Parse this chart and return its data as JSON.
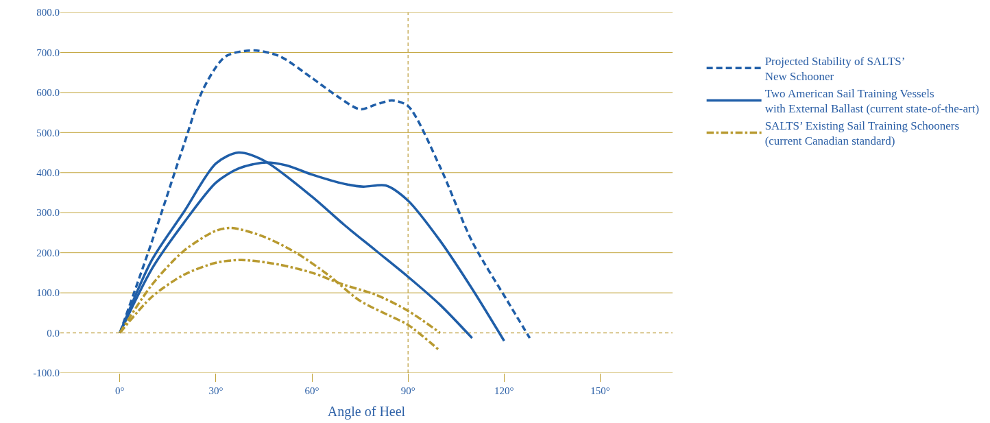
{
  "chart_data": {
    "type": "line",
    "xlabel": "Angle of Heel",
    "xlim": [
      -18.6,
      172.6
    ],
    "ylim": [
      -100,
      800
    ],
    "xticks": [
      {
        "value": 0,
        "label": "0°"
      },
      {
        "value": 30,
        "label": "30°"
      },
      {
        "value": 60,
        "label": "60°"
      },
      {
        "value": 90,
        "label": "90°"
      },
      {
        "value": 120,
        "label": "120°"
      },
      {
        "value": 150,
        "label": "150°"
      }
    ],
    "yticks": [
      {
        "value": -100,
        "label": "-100.0"
      },
      {
        "value": 0,
        "label": "0.0"
      },
      {
        "value": 100,
        "label": "100.0"
      },
      {
        "value": 200,
        "label": "200.0"
      },
      {
        "value": 300,
        "label": "300.0"
      },
      {
        "value": 400,
        "label": "400.0"
      },
      {
        "value": 500,
        "label": "500.0"
      },
      {
        "value": 600,
        "label": "600.0"
      },
      {
        "value": 700,
        "label": "700.0"
      },
      {
        "value": 800,
        "label": "800.0"
      }
    ],
    "grid": "y",
    "legend": "right",
    "marker": "none",
    "series": [
      {
        "name": "Projected Stability of SALTS’\nNew Schooner",
        "color": "#1f5ea8",
        "line_style": "dashed",
        "x": [
          0,
          10,
          20,
          26,
          33,
          42,
          50,
          60,
          68,
          75,
          80,
          85,
          90,
          100,
          110,
          121,
          128
        ],
        "values": [
          0,
          228,
          470,
          608,
          690,
          705,
          690,
          636,
          590,
          558,
          570,
          580,
          566,
          414,
          228,
          80,
          -13
        ]
      },
      {
        "name": "Two American Sail Training Vessels\nwith External Ballast (current state-of-the-art)",
        "color": "#1f5ea8",
        "line_style": "solid",
        "x": [
          0,
          10,
          20,
          30,
          37,
          45,
          52,
          60,
          70,
          76,
          83,
          90,
          100,
          110,
          120
        ],
        "values": [
          0,
          160,
          275,
          375,
          410,
          425,
          418,
          395,
          372,
          365,
          368,
          330,
          230,
          110,
          -20
        ]
      },
      {
        "color": "#1f5ea8",
        "line_style": "solid",
        "x": [
          0,
          10,
          20,
          30,
          37,
          45,
          60,
          70,
          80,
          90,
          100,
          110
        ],
        "values": [
          0,
          182,
          302,
          423,
          450,
          430,
          340,
          270,
          205,
          140,
          70,
          -13
        ]
      },
      {
        "name": "SALTS’ Existing Sail Training Schooners\n(current Canadian standard)",
        "color": "#b89a30",
        "line_style": "dashdot",
        "x": [
          0,
          10,
          20,
          30,
          35,
          45,
          55,
          65,
          75,
          85,
          90,
          100
        ],
        "values": [
          0,
          120,
          205,
          255,
          262,
          240,
          200,
          145,
          80,
          40,
          20,
          -45
        ]
      },
      {
        "color": "#b89a30",
        "line_style": "dashdot",
        "x": [
          0,
          10,
          20,
          30,
          38,
          50,
          60,
          70,
          80,
          90,
          100
        ],
        "values": [
          0,
          90,
          145,
          175,
          182,
          170,
          150,
          120,
          95,
          55,
          0
        ]
      }
    ],
    "ref_lines": [
      {
        "axis": "x",
        "value": 90,
        "color": "#c9b060",
        "line_style": "dashed"
      }
    ]
  }
}
